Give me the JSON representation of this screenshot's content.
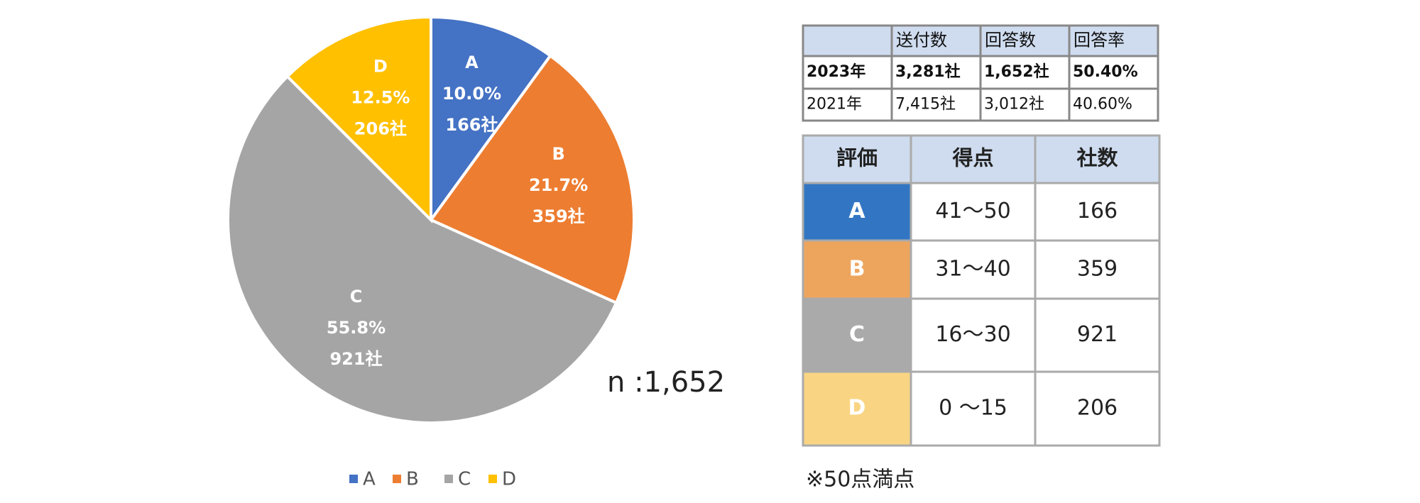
{
  "chart_data": {
    "type": "pie",
    "categories": [
      "A",
      "B",
      "C",
      "D"
    ],
    "values": [
      10.0,
      21.7,
      55.8,
      12.5
    ],
    "value_labels": [
      "10.0%",
      "21.7%",
      "55.8%",
      "12.5%"
    ],
    "count_labels": [
      "166社",
      "359社",
      "921社",
      "206社"
    ],
    "colors": [
      "#4472c4",
      "#ed7d31",
      "#a5a5a5",
      "#ffc000"
    ],
    "annotation": "n :1,652",
    "legend": "bottom"
  },
  "response_table": {
    "header": [
      "送付数",
      "回答数",
      "回答率"
    ],
    "rows": [
      [
        "2023年",
        "3,281社",
        "1,652社",
        "50.40%"
      ],
      [
        "2021年",
        "7,415社",
        "3,012社",
        "40.60%"
      ]
    ]
  },
  "grade_table": {
    "header": [
      "評価",
      "得点",
      "社数"
    ],
    "rows": [
      [
        "A",
        "41～50",
        "166"
      ],
      [
        "B",
        "31～40",
        "359"
      ],
      [
        "C",
        "16～30",
        "921"
      ],
      [
        "D",
        "0 ～15",
        "206"
      ]
    ],
    "colors": [
      "#3276c3",
      "#eda55e",
      "#aaaaaa",
      "#f9d583"
    ]
  },
  "footnote": "※50点満点"
}
